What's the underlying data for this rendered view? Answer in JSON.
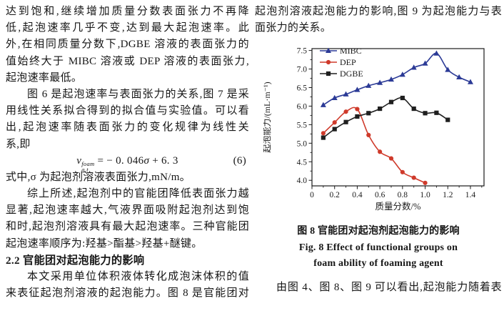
{
  "left": {
    "lines": [
      "达到饱和,继续增加质量分数表面张力不再降",
      "低,起泡速率几乎不变,达到最大起泡速率。此",
      "外,在相同质量分数下,DGBE 溶液的表面张力的",
      "值始终大于 MIBC 溶液或 DEP 溶液的表面张力,",
      "起泡速率最低。",
      "图 6 是起泡速率与表面张力的关系,图 7 是采",
      "用线性关系拟合得到的拟合值与实验值。可以看",
      "出,起泡速率随表面张力的变化规律为线性关",
      "系,即",
      "式中,σ 为起泡剂溶液表面张力,mN/m。",
      "综上所述,起泡剂中的官能团降低表面张力越",
      "显著,起泡速率越大,气液界面吸附起泡剂达到饱",
      "和时,起泡剂溶液具有最大起泡速率。三种官能团",
      "起泡速率顺序为:羟基>酯基>羟基+醚键。",
      "2.2  官能团对起泡能力的影响",
      "本文采用单位体积液体转化成泡沫体积的值",
      "来表征起泡剂溶液的起泡能力。图 8 是官能团对"
    ],
    "formula": {
      "var": "v",
      "sup": "foam",
      "sub": "g,t",
      "mid": " = − 0. 046",
      "sigma": "σ",
      "tail": " + 6. 3",
      "number": "(6)"
    }
  },
  "right": {
    "lines": [
      "起泡剂溶液起泡能力的影响,图 9 为起泡能力与表",
      "面张力的关系。"
    ],
    "figure_caption": {
      "cn": "图 8  官能团对起泡剂起泡能力的影响",
      "en1": "Fig. 8  Effect of functional groups on",
      "en2": "foam ability of foaming agent"
    },
    "para_after": "由图 4、图 8、图 9 可以看出,起泡能力随着表"
  },
  "chart_data": {
    "type": "line",
    "title": "",
    "xlabel": "质量分数/%",
    "ylabel": "起泡能力/(mL·m⁻¹)",
    "xlim": [
      0,
      1.52
    ],
    "ylim": [
      3.85,
      7.55
    ],
    "x_ticks": [
      0,
      0.2,
      0.4,
      0.6,
      0.8,
      1.0,
      1.2,
      1.4
    ],
    "y_ticks": [
      4.0,
      4.5,
      5.0,
      5.5,
      6.0,
      6.5,
      7.0,
      7.5
    ],
    "x_minor_step": 0.1,
    "y_minor_step": 0.25,
    "grid": false,
    "legend_position": "top-left",
    "axis_color": "#1a1a1a",
    "series": [
      {
        "name": "MIBC",
        "color": "#2b3a96",
        "marker": "triangle",
        "x": [
          0.1,
          0.2,
          0.3,
          0.4,
          0.5,
          0.6,
          0.7,
          0.8,
          0.9,
          1.0,
          1.1,
          1.2,
          1.3,
          1.4
        ],
        "values": [
          6.03,
          6.22,
          6.32,
          6.44,
          6.55,
          6.63,
          6.72,
          6.85,
          7.04,
          7.15,
          7.42,
          6.98,
          6.78,
          6.65
        ]
      },
      {
        "name": "DEP",
        "color": "#cf3a2b",
        "marker": "circle",
        "x": [
          0.1,
          0.2,
          0.3,
          0.4,
          0.5,
          0.6,
          0.7,
          0.8,
          0.9,
          1.0
        ],
        "values": [
          5.27,
          5.56,
          5.85,
          5.92,
          5.22,
          4.77,
          4.59,
          4.22,
          4.07,
          3.93
        ]
      },
      {
        "name": "DGBE",
        "color": "#1f1f1f",
        "marker": "square",
        "x": [
          0.1,
          0.2,
          0.3,
          0.4,
          0.5,
          0.6,
          0.7,
          0.8,
          0.9,
          1.0,
          1.1,
          1.2
        ],
        "values": [
          5.15,
          5.38,
          5.57,
          5.72,
          5.81,
          5.93,
          6.11,
          6.22,
          5.93,
          5.81,
          5.82,
          5.63
        ]
      }
    ]
  }
}
